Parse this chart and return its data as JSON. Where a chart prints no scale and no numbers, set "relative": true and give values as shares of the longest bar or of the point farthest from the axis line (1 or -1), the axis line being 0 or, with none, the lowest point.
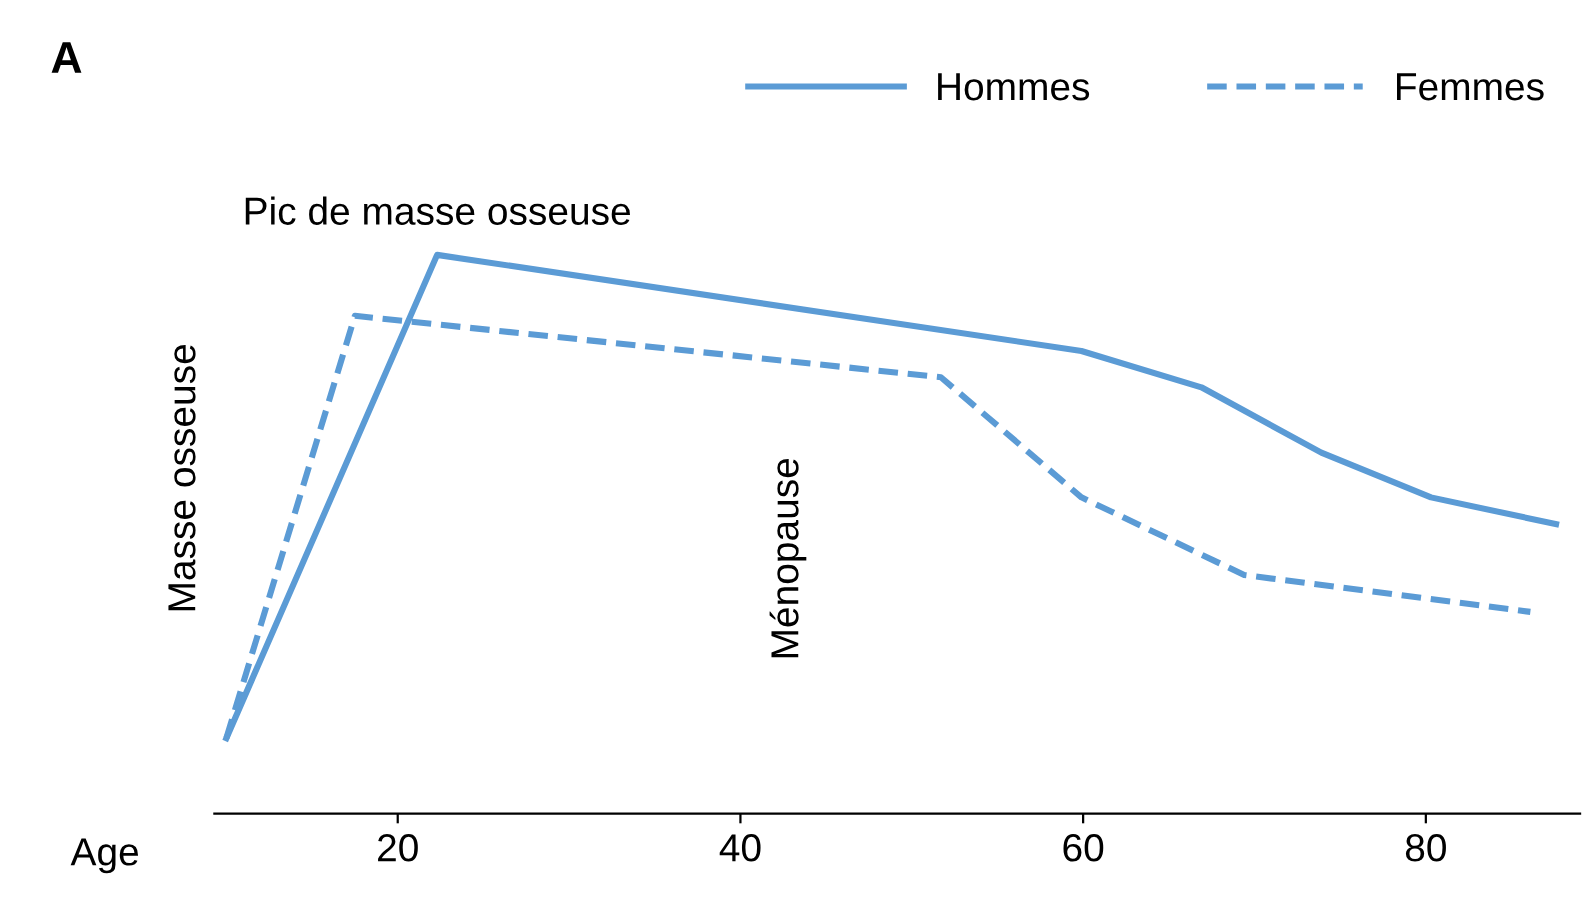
{
  "chart_data": {
    "type": "line",
    "title": "A",
    "xlabel": "Age",
    "ylabel": "Masse osseuse",
    "relative": true,
    "xlim": [
      9.3,
      89
    ],
    "xticks": [
      20,
      40,
      60,
      80
    ],
    "grid": false,
    "legend": "top right",
    "marker": "none",
    "annotations": [
      {
        "text": "Pic de masse osseuse",
        "x": 22.3,
        "y": 1.0
      },
      "Ménopause"
    ],
    "series": [
      {
        "name": "Hommes",
        "color": "#5b9bd5",
        "line_style": "solid",
        "x": [
          10.0,
          22.3,
          59.9,
          66.9,
          73.9,
          80.3,
          87.6
        ],
        "values": [
          0.135,
          1.0,
          0.828,
          0.763,
          0.646,
          0.566,
          0.518
        ]
      },
      {
        "name": "Femmes",
        "color": "#5b9bd5",
        "line_style": "dashed",
        "x": [
          10.0,
          17.5,
          51.7,
          59.9,
          69.4,
          78.5,
          86.1
        ],
        "values": [
          0.135,
          0.891,
          0.781,
          0.566,
          0.427,
          0.391,
          0.361
        ]
      }
    ]
  }
}
